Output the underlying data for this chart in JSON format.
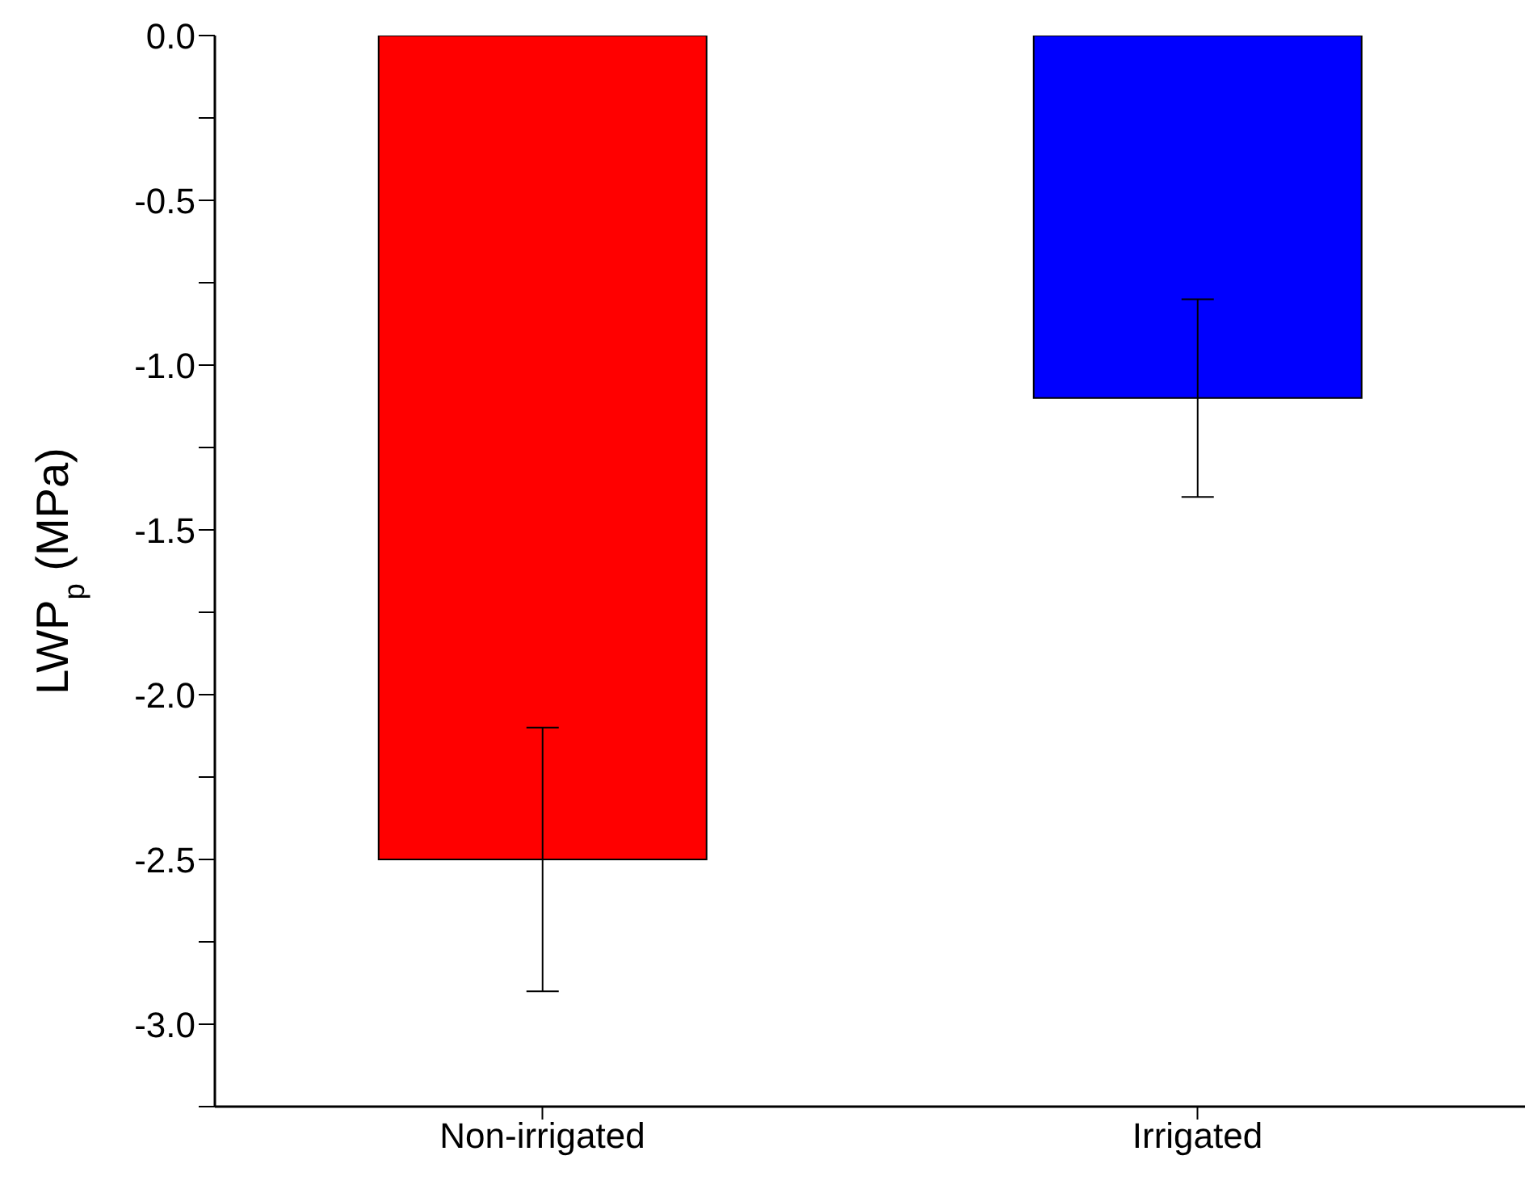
{
  "chart_data": {
    "type": "bar",
    "ylabel": "LWP$_{p}$ (MPa)",
    "categories": [
      "Non-irrigated",
      "Irrigated"
    ],
    "values": [
      -2.5,
      -1.1
    ],
    "colors": [
      "#ff0000",
      "#0000ff"
    ],
    "errors": [
      0.4,
      0.3
    ],
    "ylim": [
      -3.25,
      0
    ],
    "yticks": [
      {
        "value": -3.25,
        "label": null
      },
      {
        "value": -3,
        "label": "-3.0"
      },
      {
        "value": -2.75,
        "label": null
      },
      {
        "value": -2.5,
        "label": "-2.5"
      },
      {
        "value": -2.25,
        "label": null
      },
      {
        "value": -2,
        "label": "-2.0"
      },
      {
        "value": -1.75,
        "label": null
      },
      {
        "value": -1.5,
        "label": "-1.5"
      },
      {
        "value": -1.25,
        "label": null
      },
      {
        "value": -1,
        "label": "-1.0"
      },
      {
        "value": -0.75,
        "label": null
      },
      {
        "value": -0.5,
        "label": "-0.5"
      },
      {
        "value": -0.25,
        "label": null
      },
      {
        "value": 0,
        "label": "0.0"
      }
    ],
    "grid": false,
    "legend": false
  }
}
